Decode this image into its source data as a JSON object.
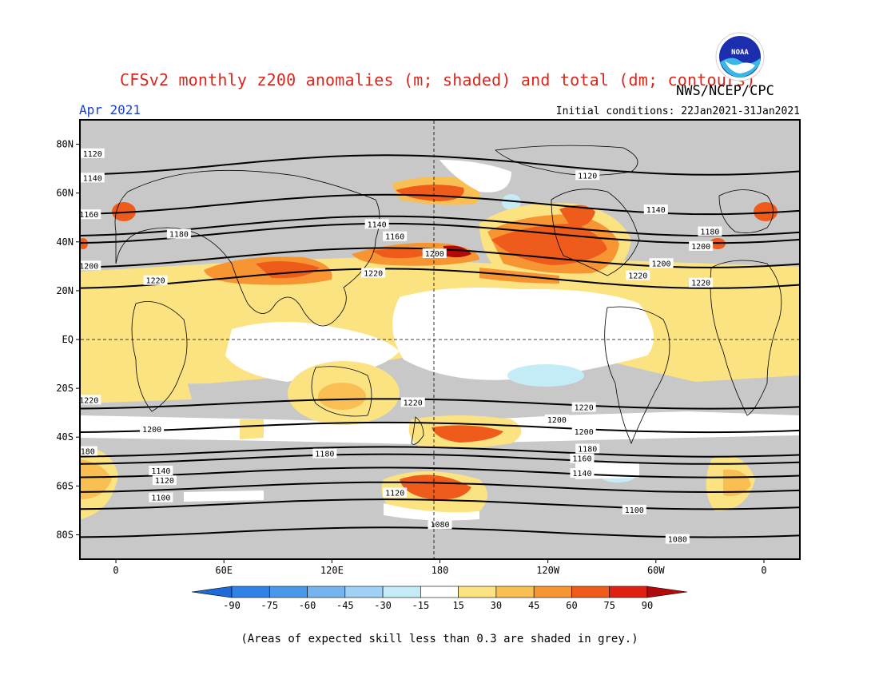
{
  "title": "CFSv2 monthly z200 anomalies (m; shaded) and total (dm; contours)",
  "agency": "NWS/NCEP/CPC",
  "logo_text": "NOAA",
  "period": "Apr 2021",
  "initial_conditions": "Initial conditions: 22Jan2021-31Jan2021",
  "footnote": "(Areas of expected skill less than 0.3 are shaded in grey.)",
  "map": {
    "lat_labels": [
      "80N",
      "60N",
      "40N",
      "20N",
      "EQ",
      "20S",
      "40S",
      "60S",
      "80S"
    ],
    "lon_labels": [
      "0",
      "60E",
      "120E",
      "180",
      "120W",
      "60W",
      "0"
    ],
    "contours": [
      {
        "label": "1080",
        "label_positions": [
          [
            180,
            -76
          ],
          [
            -48,
            -82
          ]
        ]
      },
      {
        "label": "1100",
        "label_positions": [
          [
            25,
            -65
          ],
          [
            -72,
            -70
          ]
        ]
      },
      {
        "label": "1120",
        "label_positions": [
          [
            -13,
            76
          ],
          [
            -98,
            67
          ],
          [
            27,
            -58
          ],
          [
            155,
            -63
          ]
        ]
      },
      {
        "label": "1140",
        "label_positions": [
          [
            -13,
            66
          ],
          [
            -60,
            53
          ],
          [
            25,
            -54
          ],
          [
            145,
            47
          ],
          [
            -101,
            -55
          ]
        ]
      },
      {
        "label": "1160",
        "label_positions": [
          [
            -15,
            51
          ],
          [
            155,
            42
          ],
          [
            -101,
            -49
          ]
        ]
      },
      {
        "label": "1180",
        "label_positions": [
          [
            35,
            43
          ],
          [
            -30,
            44
          ],
          [
            -17,
            -46
          ],
          [
            116,
            -47
          ],
          [
            -98,
            -45
          ]
        ]
      },
      {
        "label": "1200",
        "label_positions": [
          [
            -15,
            30
          ],
          [
            -35,
            38
          ],
          [
            -57,
            31
          ],
          [
            20,
            -37
          ],
          [
            177,
            35
          ],
          [
            -100,
            -38
          ],
          [
            -115,
            -33
          ]
        ]
      },
      {
        "label": "1220",
        "label_positions": [
          [
            -35,
            23
          ],
          [
            22,
            24
          ],
          [
            143,
            27
          ],
          [
            -70,
            26
          ],
          [
            -15,
            -25
          ],
          [
            165,
            -26
          ],
          [
            -100,
            -28
          ]
        ]
      }
    ]
  },
  "colorbar": {
    "ticks": [
      "-90",
      "-75",
      "-60",
      "-45",
      "-30",
      "-15",
      "15",
      "30",
      "45",
      "60",
      "75",
      "90"
    ],
    "colors": [
      "#1e6ad6",
      "#2f82e6",
      "#4a98ea",
      "#74b4f0",
      "#9fd0f5",
      "#c4ecf6",
      "#ffffff",
      "#fbe382",
      "#f9bf53",
      "#f69532",
      "#ef5b1b",
      "#df2010",
      "#b3090a"
    ]
  },
  "skill_mask_color": "#c8c8c8"
}
